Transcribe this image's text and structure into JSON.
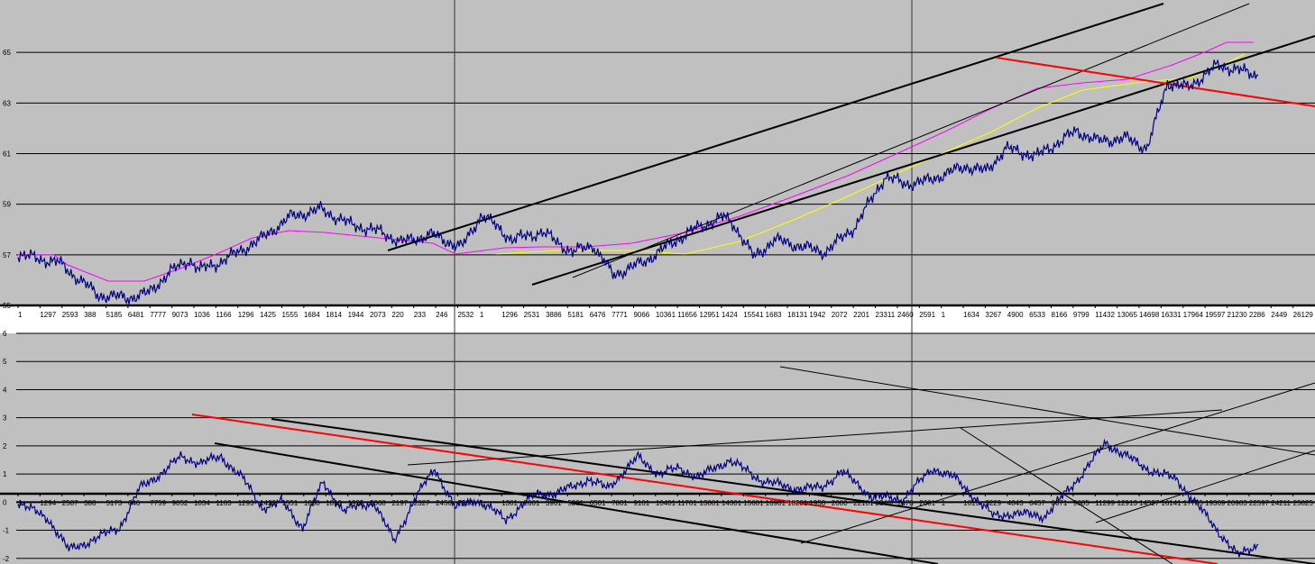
{
  "chart_data": [
    {
      "type": "line",
      "title": "",
      "xlabel": "",
      "ylabel": "",
      "ylim": [
        55,
        67
      ],
      "grid": true,
      "yticks": [
        "55",
        "57",
        "59",
        "61",
        "63",
        "65"
      ],
      "xtick_labels": [
        "1",
        "1297",
        "2593",
        "388",
        "5185",
        "6481",
        "7777",
        "9073",
        "1036",
        "1166",
        "1296",
        "1425",
        "1555",
        "1684",
        "1814",
        "1944",
        "2073",
        "220",
        "233",
        "246",
        "2532",
        "1",
        "1296",
        "2531",
        "3886",
        "5181",
        "6476",
        "7771",
        "9066",
        "10361",
        "11656",
        "12951",
        "1424",
        "15541",
        "1683",
        "18131",
        "1942",
        "2072",
        "2201",
        "23311",
        "2460",
        "2591",
        "1",
        "1634",
        "3267",
        "4900",
        "6533",
        "8166",
        "9799",
        "11432",
        "13065",
        "14698",
        "16331",
        "17964",
        "19597",
        "21230",
        "2286",
        "2449",
        "26129"
      ],
      "series": [
        {
          "color": "#000080",
          "x": [
            0,
            4,
            8,
            11,
            13,
            15,
            17,
            18,
            20,
            24,
            27,
            30,
            33,
            36,
            38,
            41,
            44,
            46,
            49,
            52,
            55,
            57,
            59,
            62,
            65,
            67,
            70,
            71,
            73,
            75,
            78,
            80,
            83,
            86,
            88,
            90,
            94,
            96,
            98,
            101,
            105,
            107,
            110,
            112,
            114,
            116,
            119,
            123
          ],
          "values": [
            57.0,
            56.7,
            55.4,
            55.3,
            55.5,
            56.3,
            56.8,
            56.4,
            56.7,
            57.6,
            58.5,
            58.8,
            58.2,
            57.9,
            57.5,
            57.8,
            57.3,
            58.6,
            57.6,
            57.9,
            57.1,
            57.4,
            56.2,
            56.7,
            57.5,
            58.0,
            58.5,
            58.2,
            56.9,
            57.6,
            57.3,
            57.1,
            58.1,
            60.1,
            59.8,
            59.9,
            60.5,
            60.3,
            61.2,
            60.9,
            61.9,
            61.5,
            61.6,
            61.2,
            63.8,
            63.6,
            64.5,
            64.1
          ]
        }
      ]
    },
    {
      "type": "line",
      "title": "",
      "xlabel": "",
      "ylabel": "",
      "ylim": [
        -2.2,
        6
      ],
      "grid": true,
      "yticks": [
        "-2",
        "-1",
        "0",
        "1",
        "2",
        "3",
        "4",
        "5",
        "6"
      ],
      "xtick_labels": [
        "1",
        "1294",
        "2587",
        "388",
        "5173",
        "646",
        "7759",
        "9052",
        "1034",
        "1163",
        "1293",
        "1422",
        "1551",
        "1680",
        "1810",
        "1939",
        "2068",
        "2197",
        "2327",
        "2456",
        "2586",
        "1",
        "1301",
        "2601",
        "3901",
        "5201",
        "6501",
        "7801",
        "9101",
        "10401",
        "11701",
        "13001",
        "14301",
        "15601",
        "16901",
        "18201",
        "1950",
        "2080",
        "22101",
        "2340",
        "2470",
        "2601",
        "1",
        "1615",
        "3229",
        "4843",
        "6457",
        "8071",
        "9685",
        "11299",
        "12913",
        "14527",
        "16141",
        "17755",
        "19369",
        "20983",
        "22597",
        "24211",
        "25825"
      ],
      "series": [
        {
          "color": "#000080",
          "x": [
            0,
            3,
            5,
            7,
            10,
            12,
            14,
            16,
            18,
            20,
            22,
            24,
            26,
            28,
            30,
            32,
            35,
            37,
            39,
            41,
            43,
            45,
            48,
            51,
            53,
            56,
            58,
            61,
            63,
            65,
            67,
            70,
            73,
            76,
            79,
            81,
            84,
            87,
            90,
            92,
            94,
            96,
            98,
            101,
            104,
            107,
            111,
            114,
            118,
            120,
            122
          ],
          "values": [
            0.0,
            -0.6,
            -1.7,
            -1.4,
            -0.9,
            0.5,
            1.0,
            1.6,
            1.4,
            1.6,
            0.9,
            -0.2,
            0.0,
            -0.9,
            0.7,
            -0.3,
            0.0,
            -1.4,
            0.1,
            1.2,
            -0.2,
            0.1,
            -0.6,
            0.3,
            0.3,
            0.8,
            0.5,
            1.6,
            1.0,
            1.2,
            0.9,
            1.5,
            0.8,
            0.5,
            0.5,
            1.1,
            0.2,
            0.1,
            1.2,
            0.9,
            0.2,
            -0.5,
            -0.4,
            -0.5,
            0.7,
            2.1,
            1.2,
            0.8,
            -1.0,
            -1.9,
            -1.5
          ]
        }
      ]
    }
  ]
}
